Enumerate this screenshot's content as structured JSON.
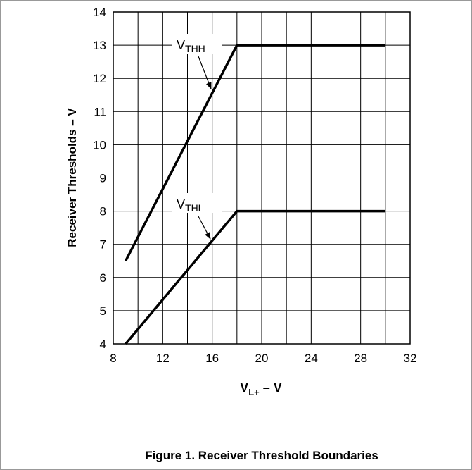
{
  "chart_data": {
    "type": "line",
    "title": "Figure 1. Receiver Threshold Boundaries",
    "xlabel": {
      "text": "V",
      "sub": "L+",
      "suffix": " – V"
    },
    "ylabel": "Receiver Thresholds – V",
    "xlim": [
      8,
      32
    ],
    "xticks": [
      8,
      12,
      16,
      20,
      24,
      28,
      32
    ],
    "x_minor_grid": [
      10,
      14,
      18,
      22,
      26,
      30
    ],
    "ylim": [
      4,
      14
    ],
    "yticks": [
      4,
      5,
      6,
      7,
      8,
      9,
      10,
      11,
      12,
      13,
      14
    ],
    "grid": true,
    "series": [
      {
        "label": {
          "text": "V",
          "sub": "THH"
        },
        "color": "#000000",
        "x": [
          9,
          18,
          30
        ],
        "values": [
          6.5,
          13,
          13
        ]
      },
      {
        "label": {
          "text": "V",
          "sub": "THL"
        },
        "color": "#000000",
        "x": [
          9,
          18,
          30
        ],
        "values": [
          4,
          8,
          8
        ]
      }
    ]
  }
}
